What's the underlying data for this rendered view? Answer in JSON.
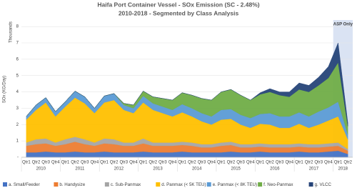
{
  "chart_data": {
    "type": "stacked-area",
    "title": "Haifa Port Container Vessel - SOx Emission (SC - 2.48%)",
    "subtitle": "2010-2018 - Segmented by Class Analysis",
    "y_label": "SOx (KG/Day)",
    "y_unit_label": "Thousands",
    "categories": [
      "Qtr1",
      "Qtr2",
      "Qtr3",
      "Qtr4",
      "Qtr1",
      "Qtr2",
      "Qtr3",
      "Qtr4",
      "Qtr1",
      "Qtr2",
      "Qtr3",
      "Qtr4",
      "Qtr1",
      "Qtr2",
      "Qtr3",
      "Qtr4",
      "Qtr1",
      "Qtr2",
      "Qtr3",
      "Qtr4",
      "Qtr1",
      "Qtr2",
      "Qtr3",
      "Qtr4",
      "Qtr1",
      "Qtr2",
      "Qtr3",
      "Qtr4",
      "Qtr1",
      "Qtr2",
      "Qtr3",
      "Qtr4",
      "Qtr1",
      "Qtr2"
    ],
    "years": [
      "2010",
      "2011",
      "2012",
      "2013",
      "2014",
      "2015",
      "2016",
      "2017",
      "2018"
    ],
    "ylim": [
      0,
      8.4
    ],
    "yticks": [
      {
        "value": 0,
        "label": "-"
      },
      1,
      2,
      3,
      4,
      5,
      6,
      7,
      8
    ],
    "grid": true,
    "annotations": [
      {
        "text": "ASP Only",
        "from": 32,
        "to": 33,
        "color": "#dae3f3"
      }
    ],
    "series": [
      {
        "name": "a. Small/Feeder",
        "color": "#4472c4",
        "values": [
          0.3,
          0.3,
          0.35,
          0.3,
          0.3,
          0.35,
          0.3,
          0.3,
          0.35,
          0.3,
          0.3,
          0.3,
          0.35,
          0.3,
          0.3,
          0.3,
          0.35,
          0.3,
          0.3,
          0.3,
          0.3,
          0.35,
          0.3,
          0.3,
          0.35,
          0.3,
          0.3,
          0.3,
          0.35,
          0.3,
          0.3,
          0.35,
          0.4,
          0.2
        ]
      },
      {
        "name": "b. Handysize",
        "color": "#ed7d31",
        "values": [
          0.4,
          0.5,
          0.5,
          0.4,
          0.5,
          0.6,
          0.5,
          0.4,
          0.5,
          0.5,
          0.4,
          0.4,
          0.5,
          0.4,
          0.4,
          0.4,
          0.4,
          0.4,
          0.3,
          0.3,
          0.4,
          0.4,
          0.3,
          0.3,
          0.3,
          0.3,
          0.3,
          0.3,
          0.3,
          0.3,
          0.3,
          0.3,
          0.3,
          0.2
        ]
      },
      {
        "name": "c. Sub-Panmax",
        "color": "#a5a5a5",
        "values": [
          0.2,
          0.3,
          0.3,
          0.2,
          0.3,
          0.3,
          0.3,
          0.2,
          0.3,
          0.3,
          0.2,
          0.2,
          0.3,
          0.2,
          0.2,
          0.2,
          0.2,
          0.2,
          0.2,
          0.2,
          0.2,
          0.2,
          0.2,
          0.2,
          0.2,
          0.2,
          0.2,
          0.2,
          0.2,
          0.2,
          0.2,
          0.2,
          0.2,
          0.1
        ]
      },
      {
        "name": "d. Panmax (< 5K TEU)",
        "color": "#ffc000",
        "values": [
          1.4,
          1.8,
          2.2,
          1.6,
          2.0,
          2.4,
          2.2,
          1.8,
          2.2,
          2.4,
          2.0,
          1.8,
          2.2,
          2.0,
          1.8,
          1.6,
          1.8,
          1.6,
          1.4,
          1.2,
          1.4,
          1.4,
          1.2,
          1.0,
          1.2,
          1.2,
          1.0,
          1.0,
          1.2,
          1.0,
          1.2,
          1.4,
          1.6,
          0.6
        ]
      },
      {
        "name": "e. Panmax (< 8K TEU)",
        "color": "#5b9bd5",
        "values": [
          0.2,
          0.3,
          0.3,
          0.3,
          0.3,
          0.4,
          0.4,
          0.3,
          0.4,
          0.4,
          0.3,
          0.3,
          0.4,
          0.4,
          0.4,
          0.4,
          0.5,
          0.5,
          0.5,
          0.5,
          0.6,
          0.6,
          0.6,
          0.6,
          0.6,
          0.7,
          0.7,
          0.7,
          0.7,
          0.7,
          0.8,
          0.8,
          0.9,
          0.3
        ]
      },
      {
        "name": "f. Neo-Panmax",
        "color": "#70ad47",
        "values": [
          0,
          0,
          0,
          0,
          0,
          0,
          0,
          0,
          0,
          0,
          0.1,
          0.2,
          0.3,
          0.4,
          0.5,
          0.6,
          0.7,
          0.8,
          0.9,
          1.0,
          1.1,
          1.2,
          1.2,
          1.1,
          1.2,
          1.3,
          1.3,
          1.2,
          1.4,
          1.5,
          1.6,
          1.8,
          2.4,
          0.5
        ]
      },
      {
        "name": "g. VLCC",
        "color": "#264478",
        "values": [
          0,
          0,
          0,
          0,
          0,
          0,
          0,
          0,
          0,
          0,
          0,
          0,
          0,
          0,
          0,
          0,
          0,
          0,
          0,
          0,
          0,
          0,
          0,
          0,
          0.1,
          0.2,
          0.2,
          0.3,
          0.4,
          0.4,
          0.5,
          0.7,
          1.2,
          0.2
        ]
      }
    ]
  }
}
